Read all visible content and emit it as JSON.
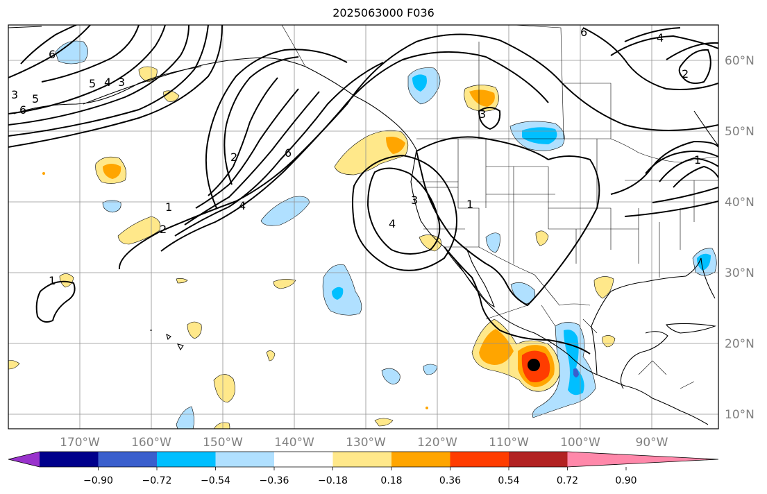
{
  "title": "2025063000 F036",
  "lon_ticks": [
    "170°W",
    "160°W",
    "150°W",
    "140°W",
    "130°W",
    "120°W",
    "110°W",
    "100°W",
    "90°W"
  ],
  "lat_ticks": [
    "60°N",
    "50°N",
    "40°N",
    "30°N",
    "20°N",
    "10°N"
  ],
  "colorbar": {
    "ticks": [
      "−0.90",
      "−0.72",
      "−0.54",
      "−0.36",
      "−0.18",
      "0.18",
      "0.36",
      "0.54",
      "0.72",
      "0.90"
    ],
    "colors": [
      "#9932cc",
      "#00008b",
      "#3a5fcd",
      "#00bfff",
      "#b0e0ff",
      "#ffffff",
      "#ffe88a",
      "#ffa500",
      "#ff3c00",
      "#b22222",
      "#ff88aa"
    ]
  },
  "contour_labels": [
    "6",
    "5",
    "4",
    "3",
    "3",
    "6",
    "2",
    "1",
    "2",
    "1",
    "4",
    "6",
    "5",
    "6",
    "3",
    "3",
    "2",
    "4",
    "4",
    "1",
    "1"
  ],
  "colors": {
    "contour": "#000000",
    "grid": "#808080",
    "coast": "#000000"
  },
  "marker": {
    "name": "storm-center",
    "color": "#000000"
  }
}
